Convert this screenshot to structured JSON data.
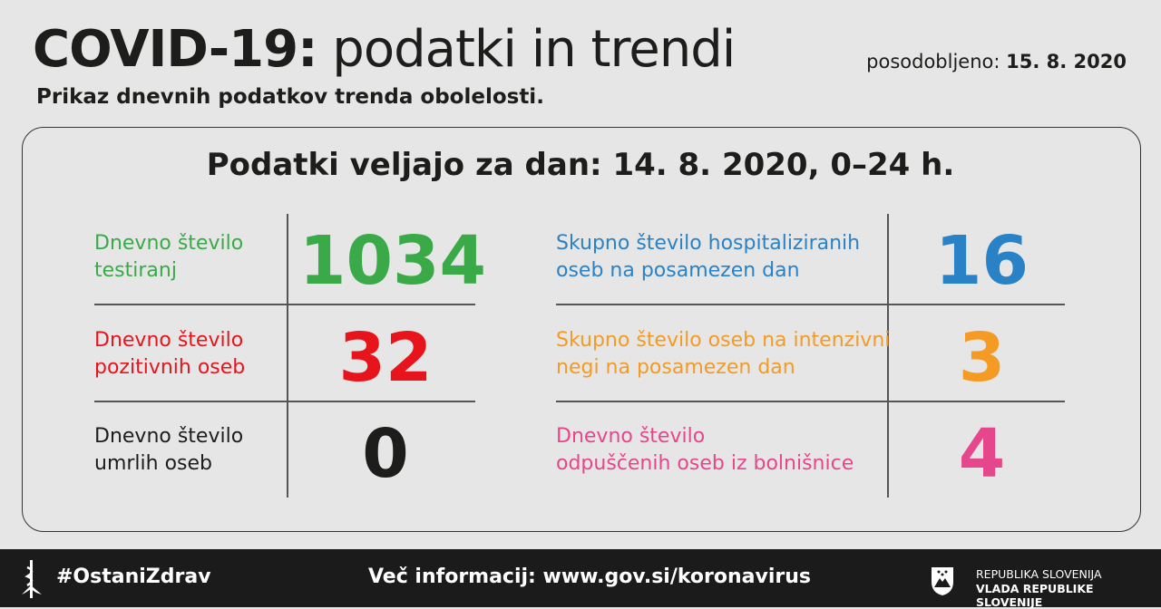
{
  "header": {
    "title_bold": "COVID-19:",
    "title_regular": " podatki in trendi",
    "updated_label": "posodobljeno: ",
    "updated_date": "15. 8. 2020",
    "subtitle": "Prikaz dnevnih podatkov trenda obolelosti."
  },
  "panel": {
    "title": "Podatki veljajo za dan: 14. 8. 2020, 0–24 h.",
    "left": [
      {
        "line1": "Dnevno število",
        "line2": "testiranj",
        "value": "1034",
        "color": "#3aaa48"
      },
      {
        "line1": "Dnevno število",
        "line2": "pozitivnih oseb",
        "value": "32",
        "color": "#e8141c"
      },
      {
        "line1": "Dnevno število",
        "line2": "umrlih oseb",
        "value": "0",
        "color": "#1d1d1b"
      }
    ],
    "right": [
      {
        "line1": "Skupno število hospitaliziranih",
        "line2": "oseb na posamezen dan",
        "value": "16",
        "color": "#2a82c6"
      },
      {
        "line1": "Skupno število oseb na intenzivni",
        "line2": "negi na posamezen dan",
        "value": "3",
        "color": "#f59a23"
      },
      {
        "line1": "Dnevno število",
        "line2": "odpuščenih oseb iz bolnišnice",
        "value": "4",
        "color": "#e6468c"
      }
    ]
  },
  "footer": {
    "hashtag": "#OstaniZdrav",
    "info": "Več informacij: www.gov.si/koronavirus",
    "gov_line1": "REPUBLIKA SLOVENIJA",
    "gov_line2": "VLADA REPUBLIKE SLOVENIJE",
    "icons": [
      "asclepius-icon",
      "slovenia-coat-of-arms-icon"
    ]
  }
}
